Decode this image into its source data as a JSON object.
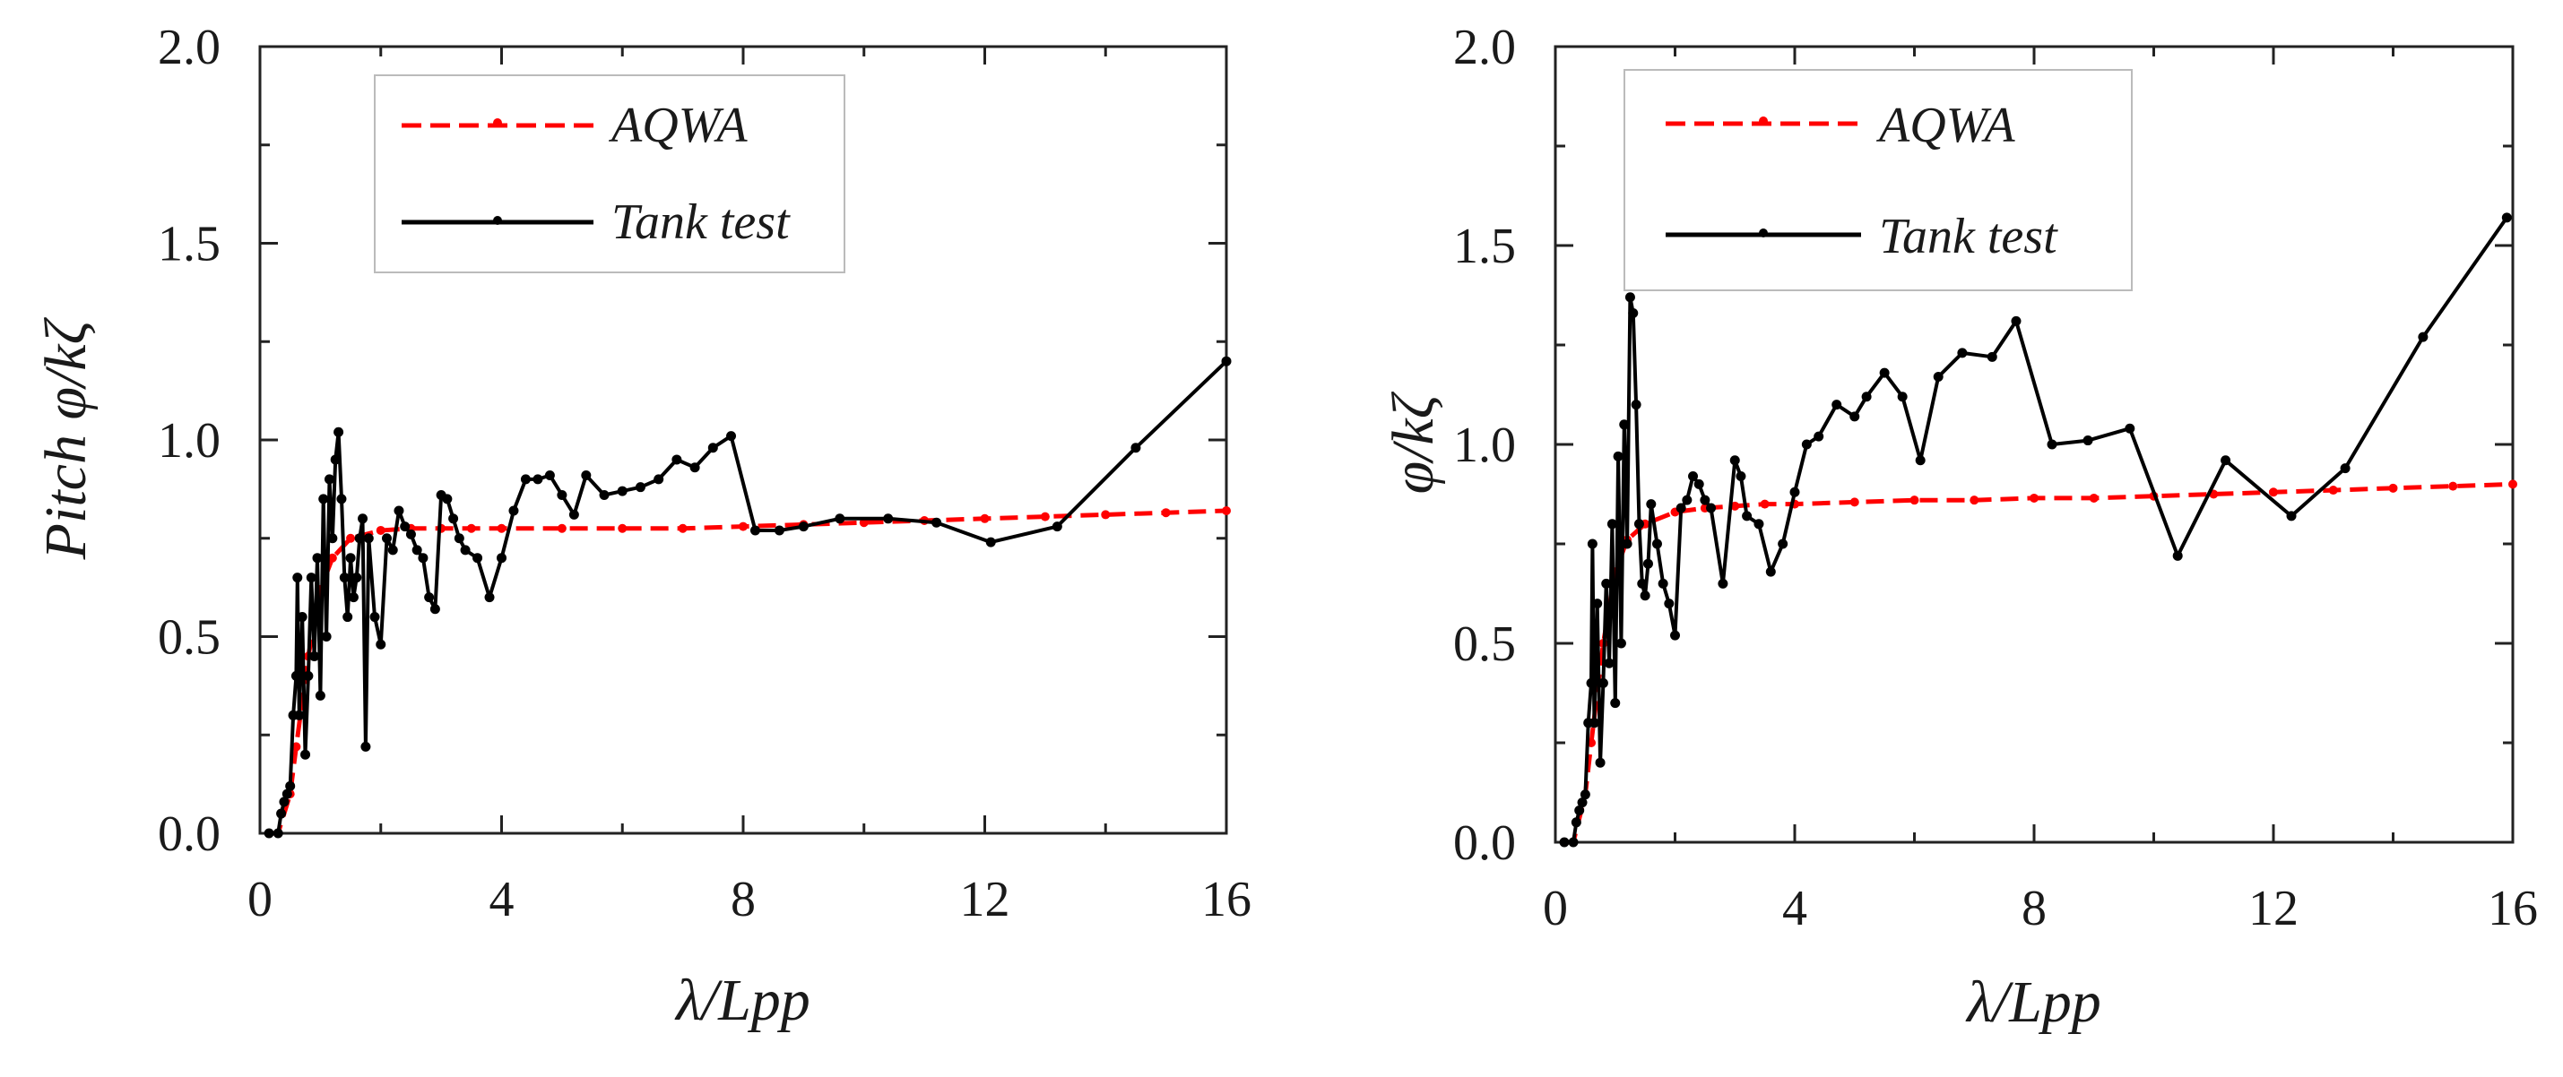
{
  "chart_data": [
    {
      "type": "line",
      "title": "",
      "xlabel": "λ/Lpp",
      "ylabel": "Pitch φ/kζ",
      "xlim": [
        0,
        16
      ],
      "ylim": [
        0,
        2.0
      ],
      "xticks": [
        0,
        4,
        8,
        12,
        16
      ],
      "xtick_labels": [
        "0",
        "4",
        "8",
        "12",
        "16"
      ],
      "yticks": [
        0,
        0.5,
        1.0,
        1.5,
        2.0
      ],
      "ytick_labels": [
        "0.0",
        "0.5",
        "1.0",
        "1.5",
        "2.0"
      ],
      "grid": false,
      "legend_position": "top-left",
      "series": [
        {
          "name": "AQWA",
          "color": "#ff0000",
          "style": "dashed",
          "x": [
            0.15,
            0.3,
            0.5,
            0.6,
            0.8,
            1.0,
            1.2,
            1.5,
            2.0,
            2.5,
            3.0,
            3.5,
            4.0,
            5.0,
            6.0,
            7.0,
            8.0,
            9.0,
            10.0,
            11.0,
            12.0,
            13.0,
            14.0,
            15.0,
            16.0
          ],
          "y": [
            0.0,
            0.0,
            0.1,
            0.22,
            0.45,
            0.62,
            0.7,
            0.75,
            0.77,
            0.775,
            0.775,
            0.775,
            0.775,
            0.775,
            0.775,
            0.775,
            0.78,
            0.785,
            0.79,
            0.795,
            0.8,
            0.805,
            0.81,
            0.815,
            0.82
          ]
        },
        {
          "name": "Tank test",
          "color": "#000000",
          "style": "solid",
          "x": [
            0.15,
            0.3,
            0.35,
            0.4,
            0.45,
            0.5,
            0.55,
            0.6,
            0.62,
            0.65,
            0.7,
            0.75,
            0.8,
            0.85,
            0.9,
            0.95,
            1.0,
            1.05,
            1.1,
            1.15,
            1.2,
            1.25,
            1.3,
            1.35,
            1.4,
            1.45,
            1.5,
            1.55,
            1.6,
            1.65,
            1.7,
            1.75,
            1.8,
            1.9,
            2.0,
            2.1,
            2.2,
            2.3,
            2.4,
            2.5,
            2.6,
            2.7,
            2.8,
            2.9,
            3.0,
            3.1,
            3.2,
            3.3,
            3.4,
            3.6,
            3.8,
            4.0,
            4.2,
            4.4,
            4.6,
            4.8,
            5.0,
            5.2,
            5.4,
            5.7,
            6.0,
            6.3,
            6.6,
            6.9,
            7.2,
            7.5,
            7.8,
            8.2,
            8.6,
            9.0,
            9.6,
            10.4,
            11.2,
            12.1,
            13.2,
            14.5,
            16.0
          ],
          "y": [
            0.0,
            0.0,
            0.05,
            0.08,
            0.1,
            0.12,
            0.3,
            0.4,
            0.65,
            0.3,
            0.55,
            0.2,
            0.4,
            0.65,
            0.45,
            0.7,
            0.35,
            0.85,
            0.5,
            0.9,
            0.75,
            0.95,
            1.02,
            0.85,
            0.65,
            0.55,
            0.7,
            0.6,
            0.65,
            0.75,
            0.8,
            0.22,
            0.75,
            0.55,
            0.48,
            0.75,
            0.72,
            0.82,
            0.78,
            0.76,
            0.72,
            0.7,
            0.6,
            0.57,
            0.86,
            0.85,
            0.8,
            0.75,
            0.72,
            0.7,
            0.6,
            0.7,
            0.82,
            0.9,
            0.9,
            0.91,
            0.86,
            0.81,
            0.91,
            0.86,
            0.87,
            0.88,
            0.9,
            0.95,
            0.93,
            0.98,
            1.01,
            0.77,
            0.77,
            0.78,
            0.8,
            0.8,
            0.79,
            0.74,
            0.78,
            0.98,
            1.2
          ]
        }
      ]
    },
    {
      "type": "line",
      "title": "",
      "xlabel": "λ/Lpp",
      "ylabel": "φ/kζ",
      "xlim": [
        0,
        16
      ],
      "ylim": [
        0,
        2.0
      ],
      "xticks": [
        0,
        4,
        8,
        12,
        16
      ],
      "xtick_labels": [
        "0",
        "4",
        "8",
        "12",
        "16"
      ],
      "yticks": [
        0,
        0.5,
        1.0,
        1.5,
        2.0
      ],
      "ytick_labels": [
        "0.0",
        "0.5",
        "1.0",
        "1.5",
        "2.0"
      ],
      "grid": false,
      "legend_position": "top-left",
      "series": [
        {
          "name": "AQWA",
          "color": "#ff0000",
          "style": "dashed",
          "x": [
            0.15,
            0.3,
            0.5,
            0.6,
            0.8,
            1.0,
            1.2,
            1.5,
            2.0,
            2.5,
            3.0,
            3.5,
            4.0,
            5.0,
            6.0,
            7.0,
            8.0,
            9.0,
            10.0,
            11.0,
            12.0,
            13.0,
            14.0,
            15.0,
            16.0
          ],
          "y": [
            0.0,
            0.0,
            0.12,
            0.25,
            0.5,
            0.68,
            0.76,
            0.8,
            0.83,
            0.84,
            0.845,
            0.85,
            0.85,
            0.855,
            0.86,
            0.86,
            0.865,
            0.865,
            0.87,
            0.875,
            0.88,
            0.885,
            0.89,
            0.895,
            0.9
          ]
        },
        {
          "name": "Tank test",
          "color": "#000000",
          "style": "solid",
          "x": [
            0.15,
            0.3,
            0.35,
            0.4,
            0.45,
            0.5,
            0.55,
            0.6,
            0.62,
            0.65,
            0.7,
            0.75,
            0.8,
            0.85,
            0.9,
            0.95,
            1.0,
            1.05,
            1.1,
            1.15,
            1.2,
            1.25,
            1.3,
            1.35,
            1.4,
            1.45,
            1.5,
            1.55,
            1.6,
            1.7,
            1.8,
            1.9,
            2.0,
            2.1,
            2.2,
            2.3,
            2.4,
            2.5,
            2.6,
            2.8,
            3.0,
            3.1,
            3.2,
            3.4,
            3.6,
            3.8,
            4.0,
            4.2,
            4.4,
            4.7,
            5.0,
            5.2,
            5.5,
            5.8,
            6.1,
            6.4,
            6.8,
            7.3,
            7.7,
            8.3,
            8.9,
            9.6,
            10.4,
            11.2,
            12.3,
            13.2,
            14.5,
            15.9
          ],
          "y": [
            0.0,
            0.0,
            0.05,
            0.08,
            0.1,
            0.12,
            0.3,
            0.4,
            0.75,
            0.3,
            0.6,
            0.2,
            0.4,
            0.65,
            0.45,
            0.8,
            0.35,
            0.97,
            0.5,
            1.05,
            0.75,
            1.37,
            1.33,
            1.1,
            0.8,
            0.65,
            0.62,
            0.7,
            0.85,
            0.75,
            0.65,
            0.6,
            0.52,
            0.84,
            0.86,
            0.92,
            0.9,
            0.86,
            0.84,
            0.65,
            0.96,
            0.92,
            0.82,
            0.8,
            0.68,
            0.75,
            0.88,
            1.0,
            1.02,
            1.1,
            1.07,
            1.12,
            1.18,
            1.12,
            0.96,
            1.17,
            1.23,
            1.22,
            1.31,
            1.0,
            1.01,
            1.04,
            0.72,
            0.96,
            0.82,
            0.94,
            1.27,
            1.57
          ]
        }
      ]
    }
  ]
}
